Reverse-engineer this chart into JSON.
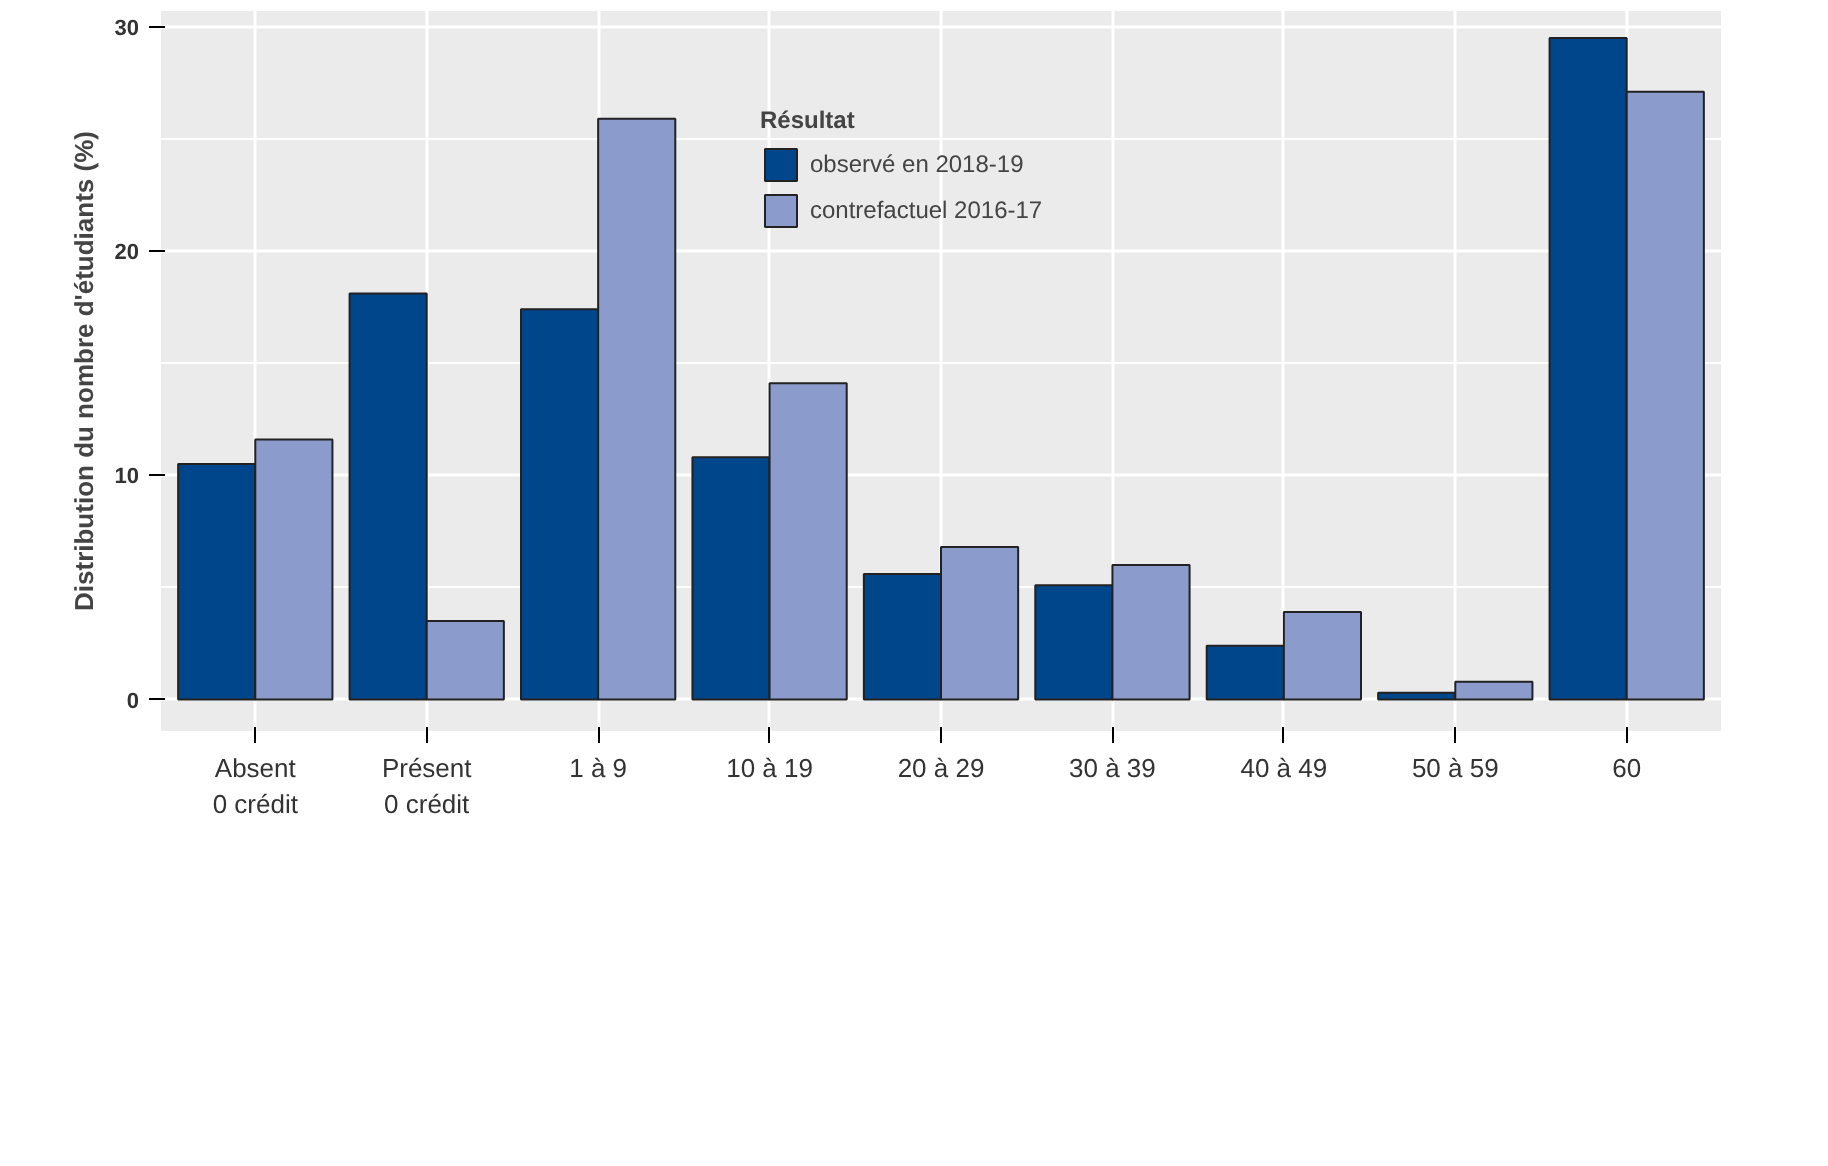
{
  "chart_data": {
    "type": "bar",
    "ylabel": "Distribution du nombre d'étudiants (%)",
    "legend_title": "Résultat",
    "categories": [
      "Absent\n0 crédit",
      "Présent\n0 crédit",
      "1 à 9",
      "10 à 19",
      "20 à 29",
      "30 à 39",
      "40 à 49",
      "50 à 59",
      "60"
    ],
    "series": [
      {
        "name": "observé en 2018-19",
        "color": "#00468b",
        "values": [
          10.5,
          18.1,
          17.4,
          10.8,
          5.6,
          5.1,
          2.4,
          0.3,
          29.5
        ]
      },
      {
        "name": "contrefactuel 2016-17",
        "color": "#8b9bcb",
        "values": [
          11.6,
          3.5,
          25.9,
          14.1,
          6.8,
          6.0,
          3.9,
          0.8,
          27.1
        ]
      }
    ],
    "ylim": [
      -1.4,
      30.7
    ],
    "yticks": [
      0,
      10,
      20,
      30
    ],
    "grid": true,
    "legend": "top"
  }
}
